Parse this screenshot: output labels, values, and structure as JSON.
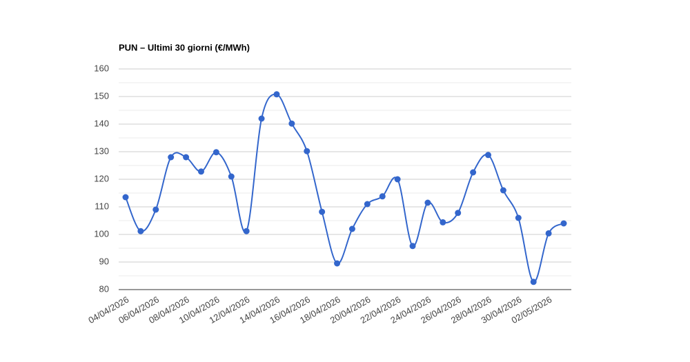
{
  "chart_data": {
    "type": "line",
    "title": "PUN – Ultimi 30 giorni (€/MWh)",
    "categories": [
      "04/04/2026",
      null,
      "06/04/2026",
      null,
      "08/04/2026",
      null,
      "10/04/2026",
      null,
      "12/04/2026",
      null,
      "14/04/2026",
      null,
      "16/04/2026",
      null,
      "18/04/2026",
      null,
      "20/04/2026",
      null,
      "22/04/2026",
      null,
      "24/04/2026",
      null,
      "26/04/2026",
      null,
      "28/04/2026",
      null,
      "30/04/2026",
      null,
      "02/05/2026",
      null
    ],
    "series": [
      {
        "color": "#3366cc",
        "values": [
          113.5,
          101.2,
          109,
          128,
          128,
          122.8,
          129.8,
          121,
          101.2,
          142,
          150.8,
          140.2,
          130.2,
          108.2,
          89.5,
          102,
          111,
          113.8,
          120,
          95.8,
          111.5,
          104.4,
          107.8,
          122.5,
          128.8,
          116,
          106,
          82.8,
          100.4,
          104
        ]
      }
    ],
    "ylim": [
      80,
      160
    ],
    "yticks": [
      80,
      90,
      100,
      110,
      120,
      130,
      140,
      150,
      160
    ],
    "grid": true,
    "minor_grid": true,
    "smooth": true
  }
}
